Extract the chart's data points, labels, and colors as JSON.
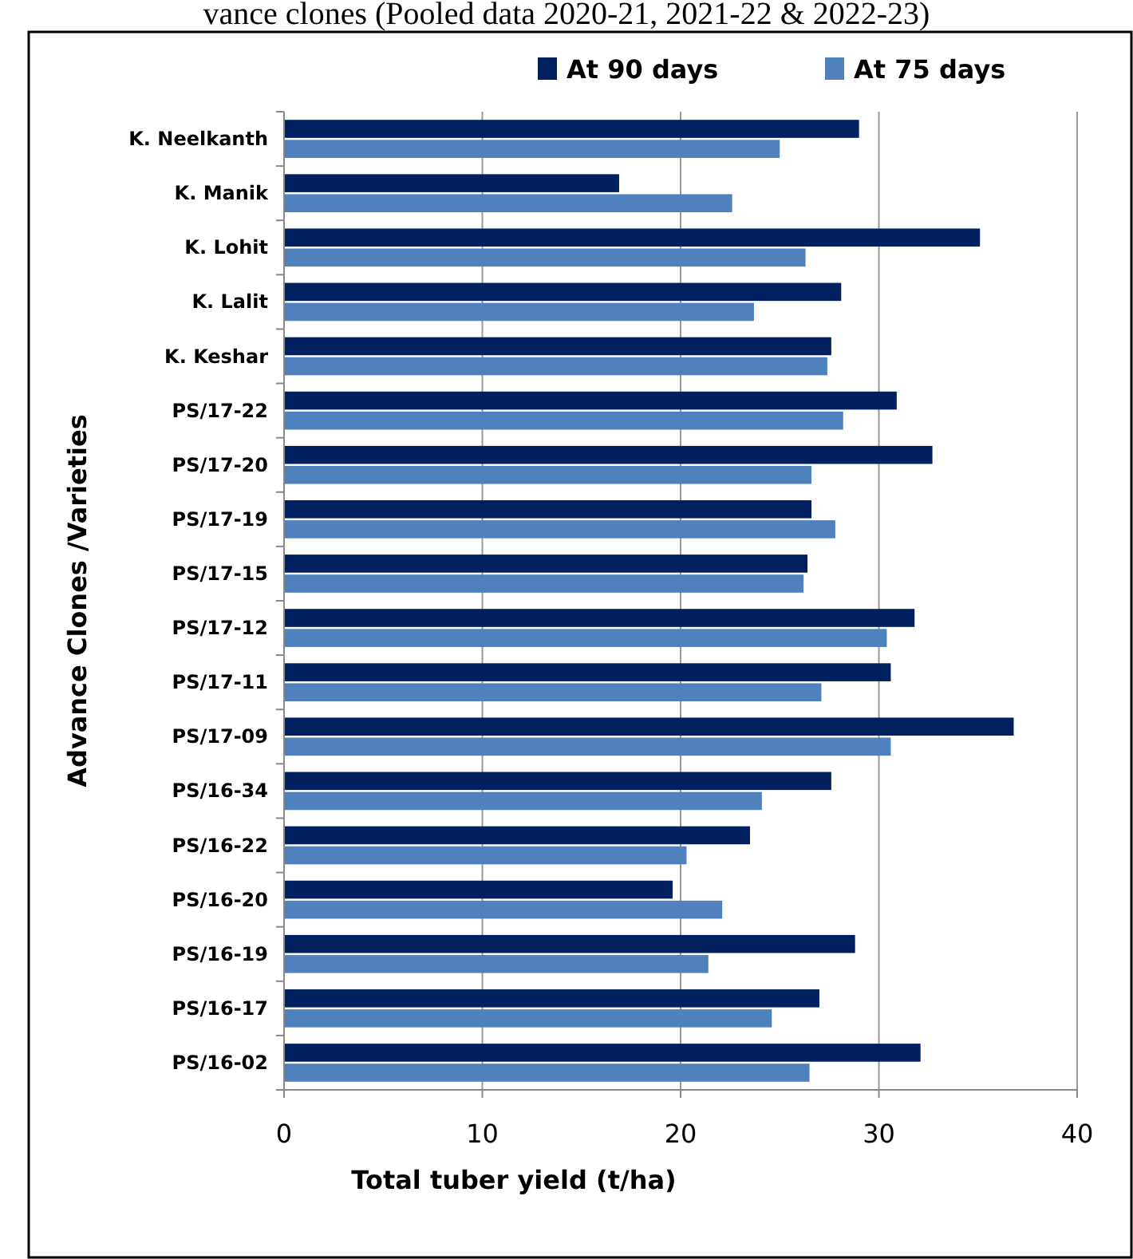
{
  "chart_data": {
    "type": "bar",
    "orientation": "horizontal",
    "title": "vance clones (Pooled data 2020-21, 2021-22 & 2022-23)",
    "xlabel": "Total tuber yield (t/ha)",
    "ylabel": "Advance Clones /Varieties",
    "categories": [
      "K. Neelkanth",
      "K. Manik",
      "K. Lohit",
      "K. Lalit",
      "K. Keshar",
      "PS/17-22",
      "PS/17-20",
      "PS/17-19",
      "PS/17-15",
      "PS/17-12",
      "PS/17-11",
      "PS/17-09",
      "PS/16-34",
      "PS/16-22",
      "PS/16-20",
      "PS/16-19",
      "PS/16-17",
      "PS/16-02"
    ],
    "series": [
      {
        "name": "At 90 days",
        "color": "#002060",
        "values": [
          29.0,
          16.9,
          35.1,
          28.1,
          27.6,
          30.9,
          32.7,
          26.6,
          26.4,
          31.8,
          30.6,
          36.8,
          27.6,
          23.5,
          19.6,
          28.8,
          27.0,
          32.1
        ]
      },
      {
        "name": "At 75 days",
        "color": "#4f81bd",
        "values": [
          25.0,
          22.6,
          26.3,
          23.7,
          27.4,
          28.2,
          26.6,
          27.8,
          26.2,
          30.4,
          27.1,
          30.6,
          24.1,
          20.3,
          22.1,
          21.4,
          24.6,
          26.5
        ]
      }
    ],
    "xlim": [
      0,
      40
    ],
    "xticks": [
      0,
      10,
      20,
      30,
      40
    ],
    "grid": "x",
    "legend": "top right"
  }
}
